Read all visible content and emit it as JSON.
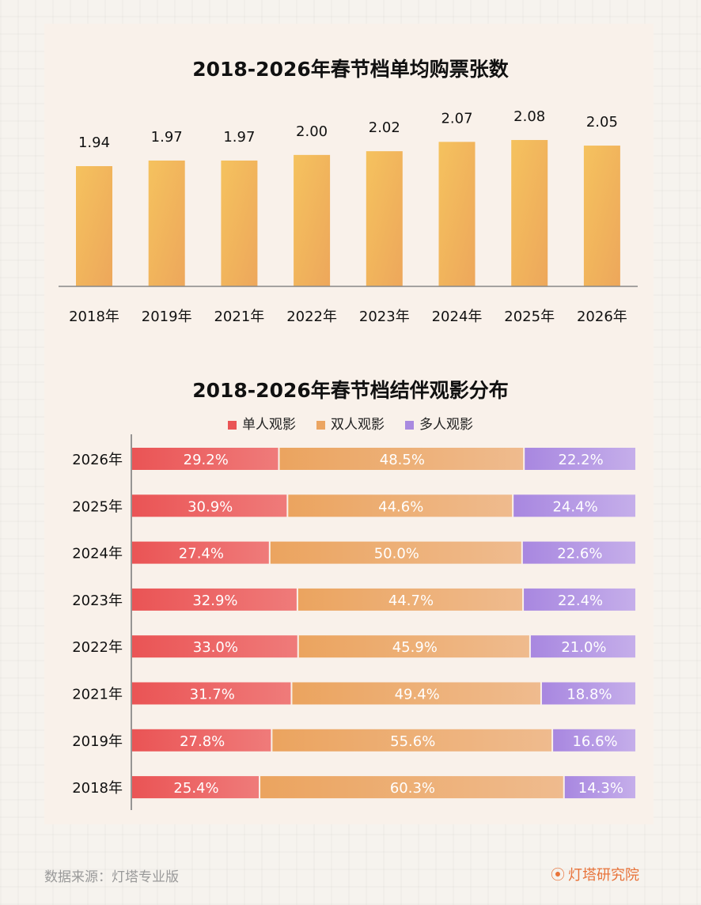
{
  "chart_data": [
    {
      "type": "bar",
      "title": "2018-2026年春节档单均购票张数",
      "categories": [
        "2018年",
        "2019年",
        "2021年",
        "2022年",
        "2023年",
        "2024年",
        "2025年",
        "2026年"
      ],
      "values": [
        1.94,
        1.97,
        1.97,
        2.0,
        2.02,
        2.07,
        2.08,
        2.05
      ],
      "bar_color": "#f3b95b",
      "grid": false
    },
    {
      "type": "bar",
      "orientation": "horizontal",
      "stacked": "percent",
      "title": "2018-2026年春节档结伴观影分布",
      "categories": [
        "2026年",
        "2025年",
        "2024年",
        "2023年",
        "2022年",
        "2021年",
        "2019年",
        "2018年"
      ],
      "series": [
        {
          "name": "单人观影",
          "color": "#ea5455",
          "values": [
            29.2,
            30.9,
            27.4,
            32.9,
            33.0,
            31.7,
            27.8,
            25.4
          ]
        },
        {
          "name": "双人观影",
          "color": "#eba562",
          "values": [
            48.5,
            44.6,
            50.0,
            44.7,
            45.9,
            49.4,
            55.6,
            60.3
          ]
        },
        {
          "name": "多人观影",
          "color": "#a98ae0",
          "values": [
            22.2,
            24.4,
            22.6,
            22.4,
            21.0,
            18.8,
            16.6,
            14.3
          ]
        }
      ],
      "legend": "top",
      "grid": false
    }
  ],
  "footer": {
    "source": "数据来源：灯塔专业版",
    "brand": "灯塔研究院"
  }
}
